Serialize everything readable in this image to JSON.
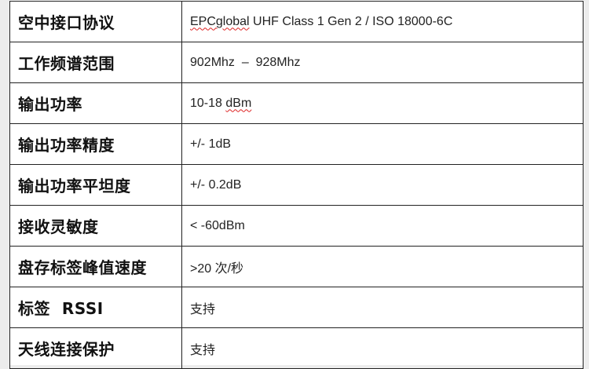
{
  "rows": [
    {
      "label": "空中接口协议",
      "value_prefix": "EPCglobal",
      "value": " UHF Class 1 Gen 2 / ISO 18000-6C"
    },
    {
      "label": "工作频谱范围",
      "value_prefix": "",
      "value": "902Mhz  –  928Mhz"
    },
    {
      "label": "输出功率",
      "value_prefix": "10-18 ",
      "value": "dBm"
    },
    {
      "label": "输出功率精度",
      "value_prefix": "",
      "value": "+/- 1dB"
    },
    {
      "label": "输出功率平坦度",
      "value_prefix": "",
      "value": "+/- 0.2dB"
    },
    {
      "label": "接收灵敏度",
      "value_prefix": "",
      "value": "< -60dBm"
    },
    {
      "label": "盘存标签峰值速度",
      "value_prefix": "",
      "value": ">20 次/秒"
    },
    {
      "label": "标签  RSSI",
      "value_prefix": "",
      "value": "支持"
    },
    {
      "label": "天线连接保护",
      "value_prefix": "",
      "value": "支持"
    }
  ]
}
